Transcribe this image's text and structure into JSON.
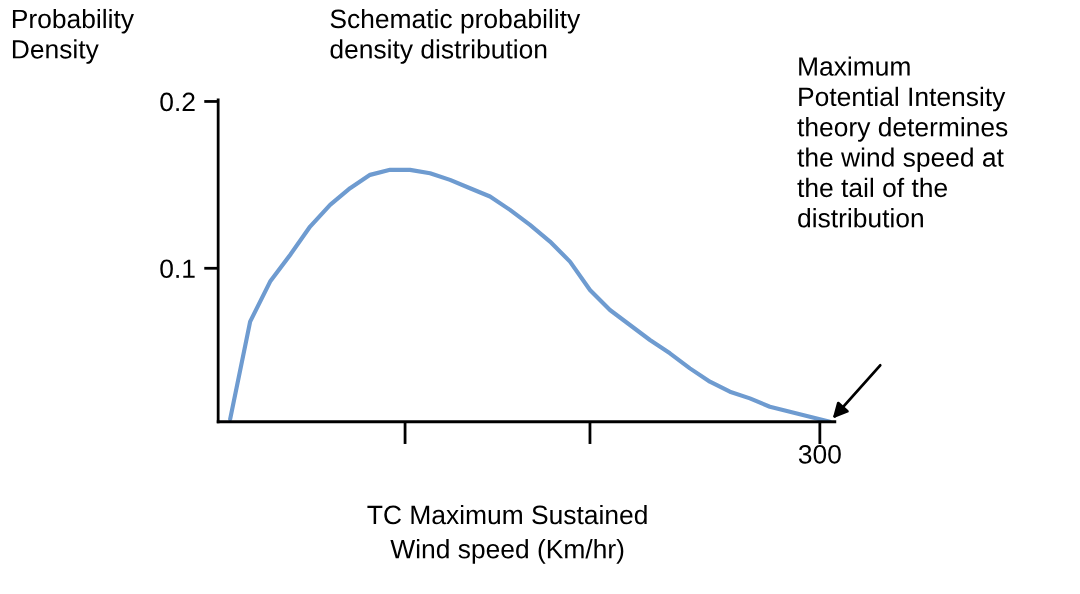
{
  "chart_data": {
    "type": "line",
    "title": "Schematic probability\ndensity distribution",
    "xlabel": "TC Maximum Sustained\nWind speed (Km/hr)",
    "ylabel": "Probability\nDensity",
    "categories": [
      null,
      null,
      null,
      null,
      null,
      null,
      null,
      null,
      null,
      null,
      null,
      null,
      null,
      null,
      null,
      null,
      null,
      null,
      null,
      null,
      null,
      null,
      null,
      null,
      null,
      null,
      null,
      null,
      null,
      null,
      null
    ],
    "series": [
      {
        "color": "#6e9bd0",
        "values": [
          0.0096,
          0.068,
          0.092,
          0.108,
          0.125,
          0.138,
          0.148,
          0.156,
          0.159,
          0.159,
          0.157,
          0.153,
          0.148,
          0.143,
          0.135,
          0.126,
          0.116,
          0.104,
          0.087,
          0.075,
          0.066,
          0.057,
          0.049,
          0.04,
          0.032,
          0.026,
          0.022,
          0.017,
          0.014,
          0.011,
          0.008
        ]
      }
    ],
    "ylim": [
      0.008,
      0.201
    ],
    "yticks": [
      {
        "value": 0.1,
        "label": "0.1"
      },
      {
        "value": 0.2,
        "label": "0.2"
      }
    ],
    "annotations": [
      "300",
      "Maximum\nPotential Intensity\ntheory determines\nthe wind speed at\nthe tail of the\ndistribution"
    ],
    "grid": false,
    "marker": "none",
    "line_style": "solid"
  }
}
